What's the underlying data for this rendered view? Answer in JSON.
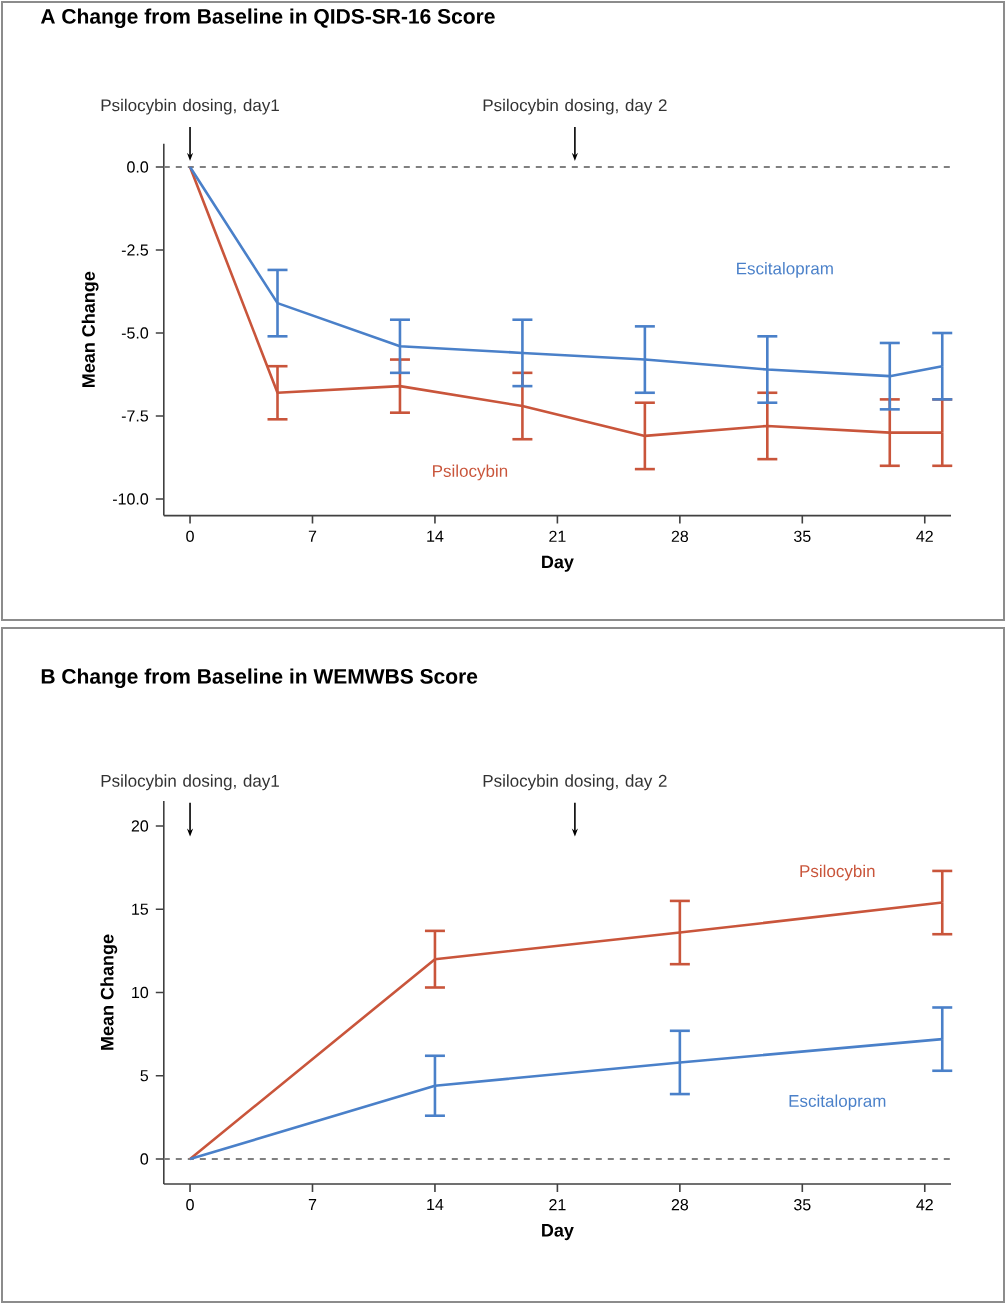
{
  "chart_data": [
    {
      "type": "line",
      "title": "A  Change from Baseline in QIDS-SR-16 Score",
      "xlabel": "Day",
      "ylabel": "Mean Change",
      "x": [
        0,
        5,
        12,
        19,
        26,
        33,
        40,
        43
      ],
      "xlim": [
        -1.5,
        43.5
      ],
      "ylim": [
        -10.5,
        0.7
      ],
      "xticks": [
        0,
        7,
        14,
        21,
        28,
        35,
        42
      ],
      "yticks": [
        {
          "value": 0,
          "label": "0.0"
        },
        {
          "value": -2.5,
          "label": "-2.5"
        },
        {
          "value": -5,
          "label": "-5.0"
        },
        {
          "value": -7.5,
          "label": "-7.5"
        },
        {
          "value": -10,
          "label": "-10.0"
        }
      ],
      "series": [
        {
          "name": "Psilocybin",
          "color": "#c9553b",
          "values": [
            0,
            -6.8,
            -6.6,
            -7.2,
            -8.1,
            -7.8,
            -8.0,
            -8.0
          ],
          "errors": [
            null,
            0.8,
            0.8,
            1.0,
            1.0,
            1.0,
            1.0,
            1.0
          ]
        },
        {
          "name": "Escitalopram",
          "color": "#4a80c9",
          "values": [
            0,
            -4.1,
            -5.4,
            -5.6,
            -5.8,
            -6.1,
            -6.3,
            -6.0
          ],
          "errors": [
            null,
            1.0,
            0.8,
            1.0,
            1.0,
            1.0,
            1.0,
            1.0
          ]
        }
      ],
      "ref_lines": [
        {
          "axis": "y",
          "value": 0,
          "color": "#808080",
          "line_style": "dashed"
        }
      ],
      "annotations": [
        "Psilocybin dosing, day1",
        "Psilocybin dosing, day 2"
      ]
    },
    {
      "type": "line",
      "title": "B  Change from Baseline in WEMWBS Score",
      "xlabel": "Day",
      "ylabel": "Mean Change",
      "x": [
        0,
        14,
        28,
        43
      ],
      "xlim": [
        -1.5,
        43.5
      ],
      "ylim": [
        -1.5,
        21.5
      ],
      "xticks": [
        0,
        7,
        14,
        21,
        28,
        35,
        42
      ],
      "yticks": [
        0,
        5,
        10,
        15,
        20
      ],
      "series": [
        {
          "name": "Psilocybin",
          "color": "#c9553b",
          "values": [
            0,
            12.0,
            13.6,
            15.4
          ],
          "errors": [
            null,
            1.7,
            1.9,
            1.9
          ]
        },
        {
          "name": "Escitalopram",
          "color": "#4a80c9",
          "values": [
            0,
            4.4,
            5.8,
            7.2
          ],
          "errors": [
            null,
            1.8,
            1.9,
            1.9
          ]
        }
      ],
      "ref_lines": [
        {
          "axis": "y",
          "value": 0,
          "color": "#808080",
          "line_style": "dashed"
        }
      ],
      "annotations": [
        "Psilocybin dosing, day1",
        "Psilocybin dosing, day 2"
      ]
    }
  ]
}
